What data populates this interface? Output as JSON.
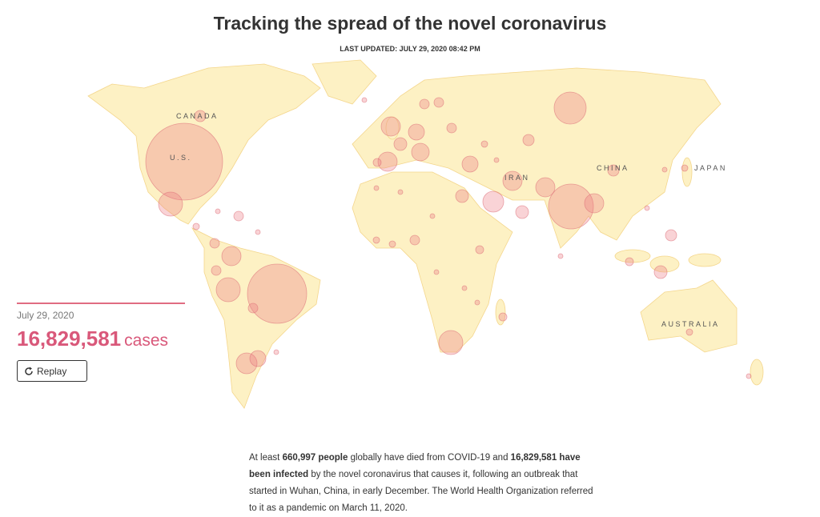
{
  "header": {
    "title": "Tracking the spread of the novel coronavirus",
    "updated": "LAST UPDATED: JULY 29, 2020 08:42 PM"
  },
  "map": {
    "labels": [
      "CANADA",
      "U.S.",
      "CHINA",
      "JAPAN",
      "IRAN",
      "AUSTRALIA"
    ]
  },
  "counter": {
    "date": "July 29, 2020",
    "count": "16,829,581",
    "unit": "cases",
    "button": "Replay"
  },
  "summary": {
    "segments": [
      {
        "text": "At least ",
        "bold": false
      },
      {
        "text": "660,997 people",
        "bold": true
      },
      {
        "text": " globally have died from COVID-19 and ",
        "bold": false
      },
      {
        "text": "16,829,581 have been infected",
        "bold": true
      },
      {
        "text": " by the novel coronavirus that causes it, following an outbreak that started in Wuhan, China, in early December. The World Health Organization referred to it as a pandemic on March 11, 2020.",
        "bold": false
      }
    ]
  }
}
